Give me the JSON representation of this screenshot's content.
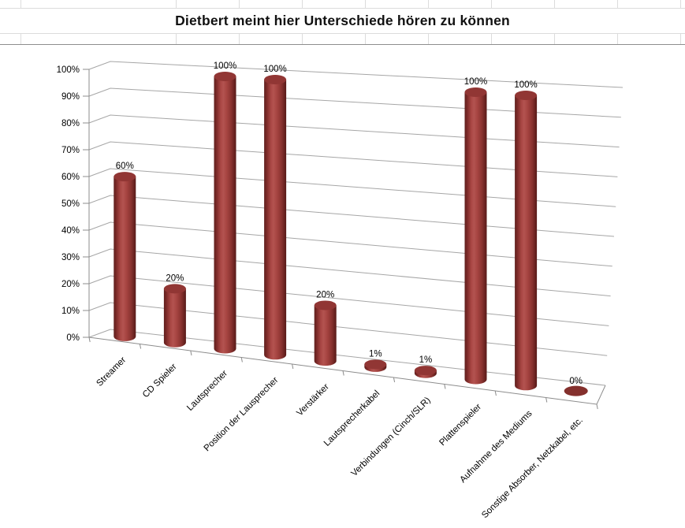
{
  "chart_data": {
    "type": "bar",
    "subtype": "3d-cylinder",
    "title": "Dietbert meint hier Unterschiede hören zu können",
    "categories": [
      "Streamer",
      "CD Spieler",
      "Lautsprecher",
      "Position der Lausprecher",
      "Verstärker",
      "Lautsprecherkabel",
      "Verbindungen (Cinch/SLR)",
      "Plattenspieler",
      "Aufnahme des Mediums",
      "Sonstige Absorber, Netzkabel, etc."
    ],
    "values": [
      60,
      20,
      100,
      100,
      20,
      1,
      1,
      100,
      100,
      0
    ],
    "data_labels": [
      "60%",
      "20%",
      "100%",
      "100%",
      "20%",
      "1%",
      "1%",
      "100%",
      "100%",
      "0%"
    ],
    "y_axis": {
      "tick_labels": [
        "0%",
        "10%",
        "20%",
        "30%",
        "40%",
        "50%",
        "60%",
        "70%",
        "80%",
        "90%",
        "100%"
      ],
      "min": 0,
      "max": 100,
      "grid": true
    },
    "series_color": "#943634",
    "legend": "none",
    "background": "#ffffff"
  }
}
